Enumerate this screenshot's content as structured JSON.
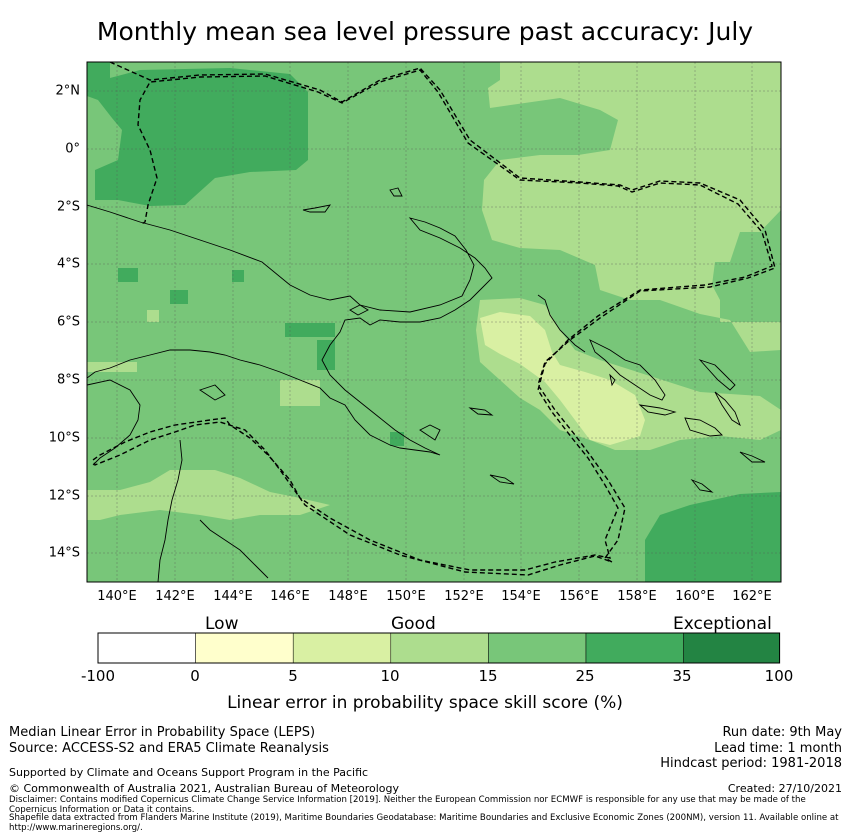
{
  "title": "Monthly mean sea level pressure past accuracy: July",
  "map": {
    "lat_labels": [
      "2°N",
      "0°",
      "2°S",
      "4°S",
      "6°S",
      "8°S",
      "10°S",
      "12°S",
      "14°S"
    ],
    "lon_labels": [
      "140°E",
      "142°E",
      "144°E",
      "146°E",
      "148°E",
      "150°E",
      "152°E",
      "154°E",
      "156°E",
      "158°E",
      "160°E",
      "162°E"
    ],
    "extent": {
      "lon_min": 139,
      "lon_max": 163,
      "lat_min": -15,
      "lat_max": 3
    }
  },
  "legend": {
    "categories": [
      "Low",
      "Good",
      "Exceptional"
    ],
    "ticks": [
      "-100",
      "0",
      "5",
      "10",
      "15",
      "25",
      "35",
      "100"
    ],
    "colors": [
      "#ffffff",
      "#ffffcc",
      "#d9f0a3",
      "#addd8e",
      "#78c679",
      "#41ab5d",
      "#238443"
    ],
    "label": "Linear error in probability space skill score (%)"
  },
  "footer": {
    "left_line1": "Median Linear Error in Probability Space (LEPS)",
    "left_line2": "Source: ACCESS-S2 and ERA5 Climate Reanalysis",
    "support": "Supported by Climate and Oceans Support Program in the Pacific",
    "copyright": "© Commonwealth of Australia 2021, Australian Bureau of Meteorology",
    "run_date": "Run date: 9th May",
    "lead_time": "Lead time: 1 month",
    "hindcast": "Hindcast period: 1981-2018",
    "created": "Created: 27/10/2021",
    "disclaimer": "Disclaimer: Contains modified Copernicus Climate Change Service Information [2019]. Neither the European Commission nor ECMWF is responsible for any use that may be made of the Copernicus Information or Data it contains.",
    "shapefile": "Shapefile data extracted from Flanders Marine Institute (2019), Maritime Boundaries Geodatabase: Maritime Boundaries and Exclusive Economic Zones (200NM), version 11. Available online at http://www.marineregions.org/."
  }
}
